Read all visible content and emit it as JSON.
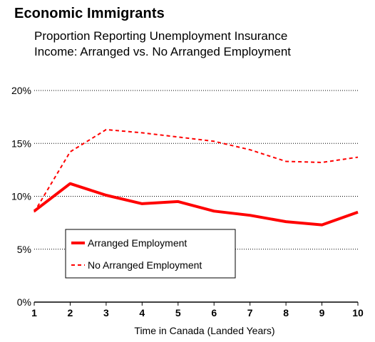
{
  "chart_data": {
    "type": "line",
    "title": "Economic Immigrants",
    "subtitle": [
      "Proportion Reporting Unemployment Insurance",
      "Income: Arranged vs. No Arranged Employment"
    ],
    "xlabel": "Time in Canada (Landed Years)",
    "ylabel": "",
    "x": [
      1,
      2,
      3,
      4,
      5,
      6,
      7,
      8,
      9,
      10
    ],
    "x_tick_labels": [
      "1",
      "2",
      "3",
      "4",
      "5",
      "6",
      "7",
      "8",
      "9",
      "10"
    ],
    "y_ticks": [
      0,
      5,
      10,
      15,
      20
    ],
    "y_tick_labels": [
      "0%",
      "5%",
      "10%",
      "15%",
      "20%"
    ],
    "ylim": [
      0,
      20
    ],
    "grid": "horizontal dotted",
    "legend_position": "lower-left",
    "series": [
      {
        "name": "Arranged Employment",
        "style": "solid",
        "color": "#ff0000",
        "values": [
          8.6,
          11.2,
          10.1,
          9.3,
          9.5,
          8.6,
          8.2,
          7.6,
          7.3,
          8.5
        ]
      },
      {
        "name": "No Arranged Employment",
        "style": "dashed",
        "color": "#ff0000",
        "values": [
          8.5,
          14.2,
          16.3,
          16.0,
          15.6,
          15.2,
          14.4,
          13.3,
          13.2,
          13.7
        ]
      }
    ]
  }
}
